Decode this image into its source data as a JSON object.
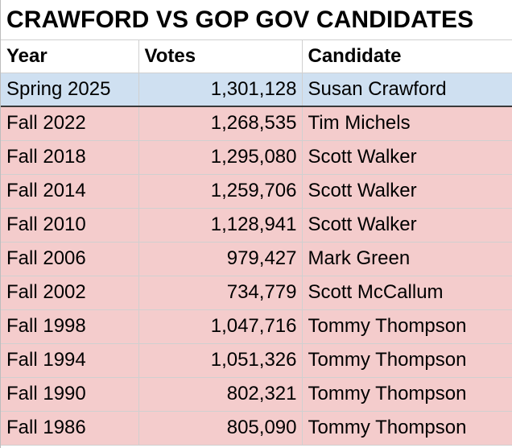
{
  "title": "CRAWFORD VS GOP GOV CANDIDATES",
  "headers": {
    "year": "Year",
    "votes": "Votes",
    "candidate": "Candidate"
  },
  "colors": {
    "highlight_row": "#cfe0f1",
    "other_rows": "#f4cccc"
  },
  "rows": [
    {
      "year": "Spring 2025",
      "votes": "1,301,128",
      "candidate": "Susan Crawford"
    },
    {
      "year": "Fall 2022",
      "votes": "1,268,535",
      "candidate": "Tim Michels"
    },
    {
      "year": "Fall 2018",
      "votes": "1,295,080",
      "candidate": "Scott Walker"
    },
    {
      "year": "Fall 2014",
      "votes": "1,259,706",
      "candidate": "Scott Walker"
    },
    {
      "year": "Fall 2010",
      "votes": "1,128,941",
      "candidate": "Scott Walker"
    },
    {
      "year": "Fall 2006",
      "votes": "979,427",
      "candidate": "Mark Green"
    },
    {
      "year": "Fall 2002",
      "votes": "734,779",
      "candidate": "Scott McCallum"
    },
    {
      "year": "Fall 1998",
      "votes": "1,047,716",
      "candidate": "Tommy Thompson"
    },
    {
      "year": "Fall 1994",
      "votes": "1,051,326",
      "candidate": "Tommy Thompson"
    },
    {
      "year": "Fall 1990",
      "votes": "802,321",
      "candidate": "Tommy Thompson"
    },
    {
      "year": "Fall 1986",
      "votes": "805,090",
      "candidate": "Tommy Thompson"
    }
  ]
}
